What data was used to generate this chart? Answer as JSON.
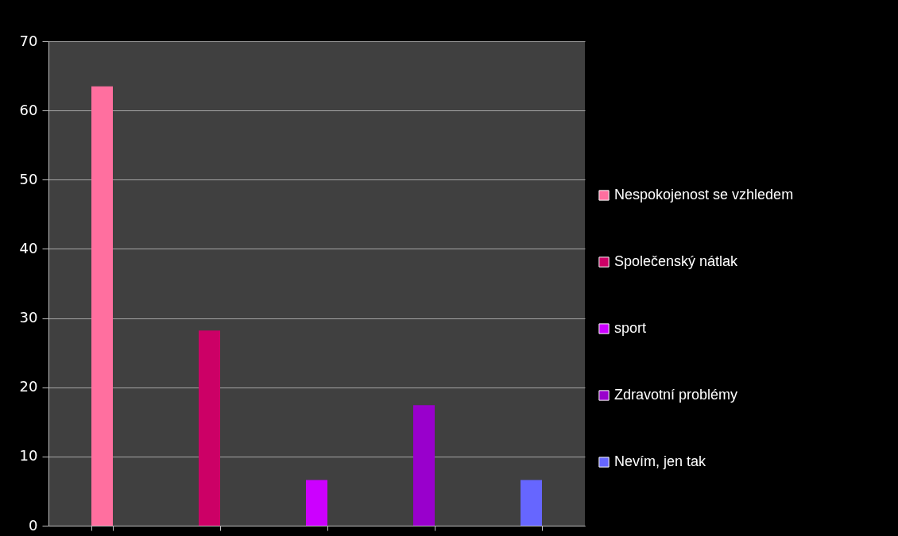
{
  "chart_data": {
    "type": "bar",
    "categories": [
      null,
      null,
      null,
      null,
      null
    ],
    "series": [
      {
        "name": "Nespokojenost se vzhledem",
        "color": "#ff6f9f",
        "values": [
          63.5,
          null,
          null,
          null,
          null
        ]
      },
      {
        "name": "Společenský nátlak",
        "color": "#cc0066",
        "values": [
          null,
          28.2,
          null,
          null,
          null
        ]
      },
      {
        "name": "sport",
        "color": "#cc00ff",
        "values": [
          null,
          null,
          6.6,
          null,
          null
        ]
      },
      {
        "name": "Zdravotní problémy",
        "color": "#9900cc",
        "values": [
          null,
          null,
          null,
          17.4,
          null
        ]
      },
      {
        "name": "Nevím, jen tak",
        "color": "#6666ff",
        "values": [
          null,
          null,
          null,
          null,
          6.6
        ]
      }
    ],
    "ylim": [
      0,
      70
    ],
    "yticks": [
      0,
      10,
      20,
      30,
      40,
      50,
      60,
      70
    ],
    "grid": "y",
    "legend": "right",
    "tick_labels": "y"
  }
}
